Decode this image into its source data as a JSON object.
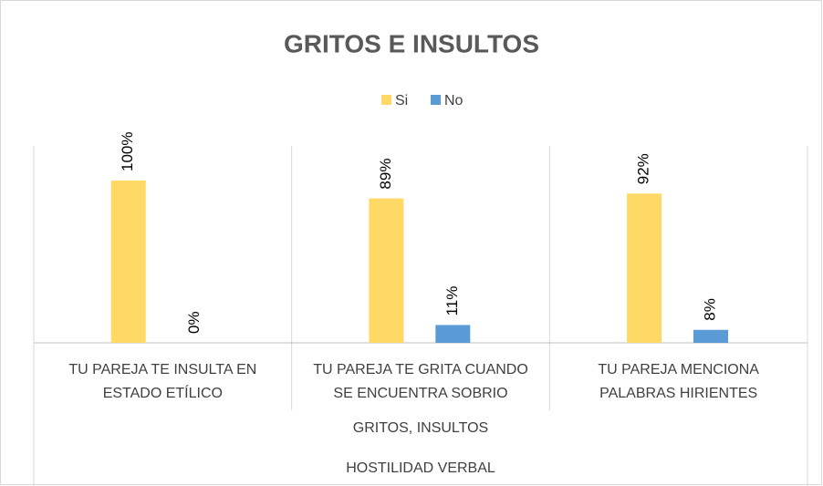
{
  "chart_data": {
    "type": "bar",
    "title": "GRITOS E INSULTOS",
    "categories": [
      [
        "TU PAREJA TE INSULTA EN",
        "ESTADO ETÍLICO"
      ],
      [
        "TU PAREJA TE GRITA CUANDO",
        "SE ENCUENTRA SOBRIO"
      ],
      [
        "TU PAREJA MENCIONA",
        "PALABRAS HIRIENTES"
      ]
    ],
    "category_levels": [
      "GRITOS, INSULTOS",
      "HOSTILIDAD VERBAL"
    ],
    "series": [
      {
        "name": "Si",
        "color": "#FFD966",
        "values": [
          100,
          89,
          92
        ],
        "value_labels": [
          "100%",
          "89%",
          "92%"
        ]
      },
      {
        "name": "No",
        "color": "#5B9BD5",
        "values": [
          0,
          11,
          8
        ],
        "value_labels": [
          "0%",
          "11%",
          "8%"
        ]
      }
    ],
    "ylim": [
      0,
      100
    ],
    "legend": "top"
  }
}
